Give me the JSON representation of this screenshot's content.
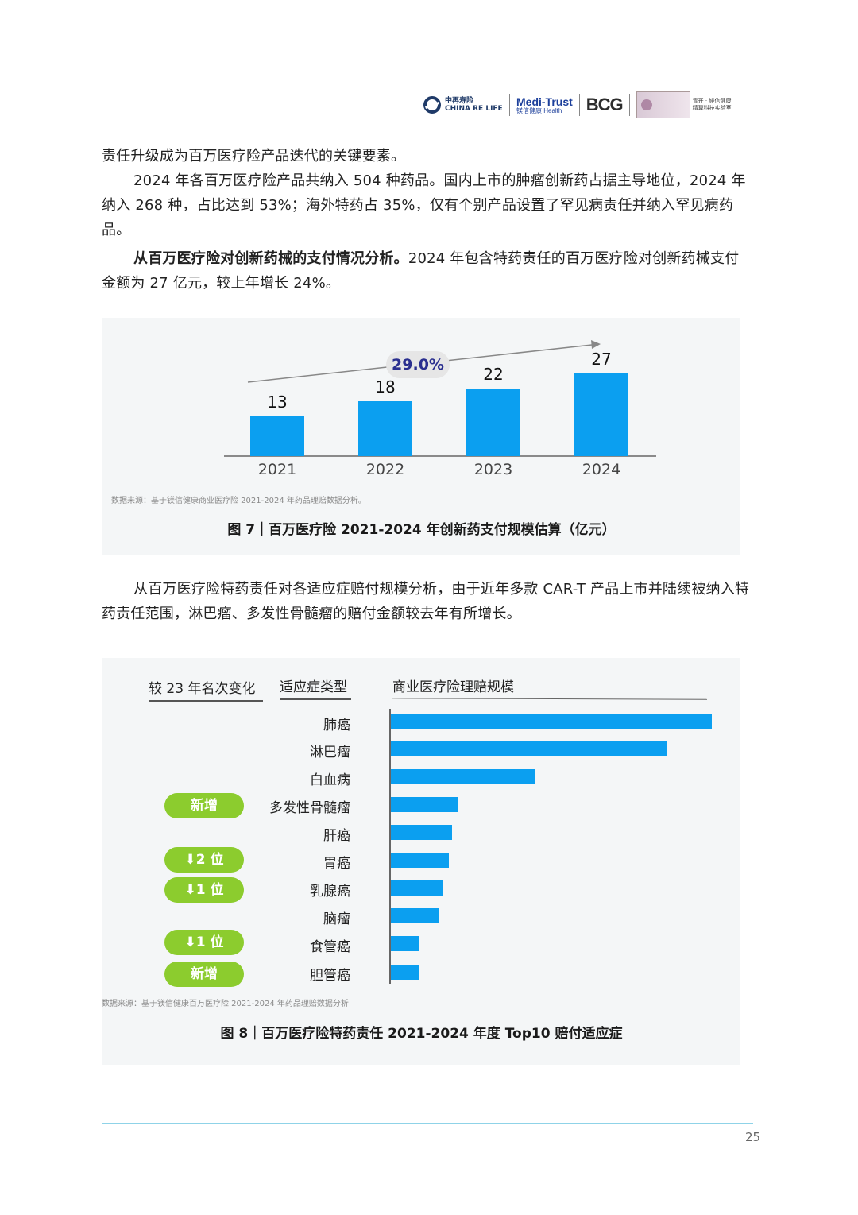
{
  "header": {
    "logo1": {
      "cn": "中再寿险",
      "en": "CHINA RE LIFE"
    },
    "logo2": {
      "main": "Medi-Trust",
      "sub": "镁信健康 Health"
    },
    "logo3": "BCG",
    "logo4": {
      "line1": "青开 · 镁信健康",
      "line2": "精算科技实验室"
    }
  },
  "body": {
    "p1": "责任升级成为百万医疗险产品迭代的关键要素。",
    "p2": "2024 年各百万医疗险产品共纳入 504 种药品。国内上市的肿瘤创新药占据主导地位，2024 年纳入 268 种，占比达到 53%；海外特药占 35%，仅有个别产品设置了罕见病责任并纳入罕见病药品。",
    "p3_bold": "从百万医疗险对创新药械的支付情况分析。",
    "p3_rest": "2024 年包含特药责任的百万医疗险对创新药械支付金额为 27 亿元，较上年增长 24%。",
    "p4": "从百万医疗险特药责任对各适应症赔付规模分析，由于近年多款 CAR-T 产品上市并陆续被纳入特药责任范围，淋巴瘤、多发性骨髓瘤的赔付金额较去年有所增长。"
  },
  "figure7": {
    "growth_label": "29.0%",
    "source": "数据来源：基于镁信健康商业医疗险 2021-2024 年药品理赔数据分析。",
    "caption": "图 7｜百万医疗险 2021-2024 年创新药支付规模估算（亿元）"
  },
  "figure8": {
    "col1": "较 23 年名次变化",
    "col2": "适应症类型",
    "col3": "商业医疗险理赔规模",
    "source": "数据来源：基于镁信健康百万医疗险 2021-2024 年药品理赔数据分析",
    "caption": "图 8｜百万医疗险特药责任 2021-2024 年度 Top10 赔付适应症",
    "badge_new": "新增",
    "badge_down2": "2 位",
    "badge_down1": "1 位"
  },
  "chart_data": [
    {
      "type": "bar",
      "categories": [
        "2021",
        "2022",
        "2023",
        "2024"
      ],
      "values": [
        13,
        18,
        22,
        27
      ],
      "ylim": [
        0,
        30
      ]
    },
    {
      "type": "bar",
      "orientation": "horizontal",
      "categories": [
        "肺癌",
        "淋巴瘤",
        "白血病",
        "多发性骨髓瘤",
        "肝癌",
        "胃癌",
        "乳腺癌",
        "脑瘤",
        "食管癌",
        "胆管癌"
      ],
      "values": [
        100,
        86,
        45,
        21,
        19,
        18,
        16,
        15,
        9,
        9
      ],
      "rank_change": [
        "",
        "",
        "",
        "新增",
        "",
        "↓2 位",
        "↓1 位",
        "",
        "↓1 位",
        "新增"
      ],
      "note": "values are relative bar lengths; no numeric axis shown"
    }
  ],
  "page": {
    "number": "25"
  }
}
